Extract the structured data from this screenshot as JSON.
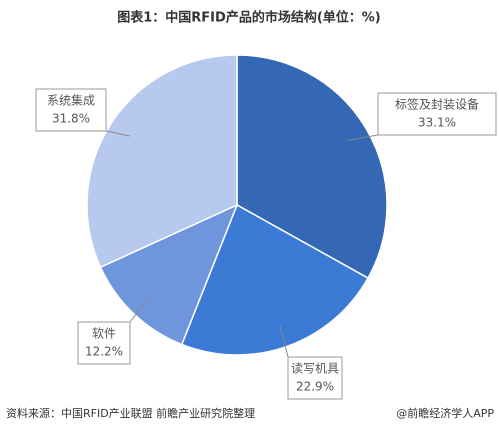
{
  "chart_data": {
    "type": "pie",
    "title": "图表1：中国RFID产品的市场结构(单位：%)",
    "categories": [
      "标签及封装设备",
      "读写机具",
      "软件",
      "系统集成"
    ],
    "values": [
      33.1,
      22.9,
      12.2,
      31.8
    ],
    "value_labels": [
      "33.1%",
      "22.9%",
      "12.2%",
      "31.8%"
    ],
    "colors": [
      "#3467b4",
      "#3b7bd6",
      "#6f95dc",
      "#b8c9ef"
    ]
  },
  "footer": {
    "source": "资料来源：中国RFID产业联盟 前瞻产业研究院整理",
    "brand": "@前瞻经济学人APP"
  }
}
